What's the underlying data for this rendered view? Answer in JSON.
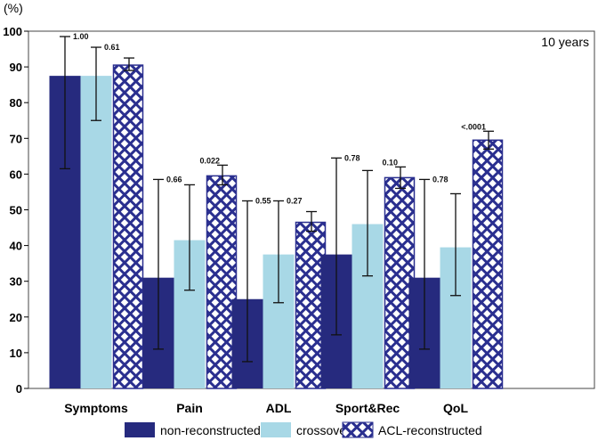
{
  "chart_data": {
    "type": "bar",
    "title": "",
    "ylabel": "(%)",
    "annotation": "10 years",
    "ylim": [
      0,
      100
    ],
    "yticks": [
      0,
      10,
      20,
      30,
      40,
      50,
      60,
      70,
      80,
      90,
      100
    ],
    "categories": [
      "Symptoms",
      "Pain",
      "ADL",
      "Sport&Rec",
      "QoL"
    ],
    "series": [
      {
        "name": "non-reconstructed",
        "color": "#262a7e",
        "pattern": "solid",
        "values": [
          87.5,
          31,
          25,
          37.5,
          31
        ],
        "err_low": [
          61.5,
          11,
          7.5,
          15,
          11
        ],
        "err_high": [
          98.5,
          58.5,
          52.5,
          64.5,
          58.5
        ],
        "p_values": [
          "1.00",
          "0.66",
          "0.55",
          "0.78",
          "0.78"
        ]
      },
      {
        "name": "crossover",
        "color": "#a8d8e6",
        "pattern": "solid",
        "values": [
          87.5,
          41.5,
          37.5,
          46,
          39.5
        ],
        "err_low": [
          75,
          27.5,
          24,
          31.5,
          26
        ],
        "err_high": [
          95.5,
          57,
          52.5,
          61,
          54.5
        ],
        "p_values": [
          "0.61",
          "",
          "0.27",
          "",
          ""
        ]
      },
      {
        "name": "ACL-reconstructed",
        "color": "#2a2f8f",
        "pattern": "crosshatch",
        "values": [
          90.5,
          59.5,
          46.5,
          59,
          69.5
        ],
        "err_low": [
          89,
          57,
          44,
          56,
          67
        ],
        "err_high": [
          92.5,
          62.5,
          49.5,
          62,
          72
        ],
        "p_values": [
          "",
          "0.022",
          "",
          "0.10",
          "<.0001"
        ]
      }
    ],
    "legend_position": "bottom",
    "grid": false
  }
}
